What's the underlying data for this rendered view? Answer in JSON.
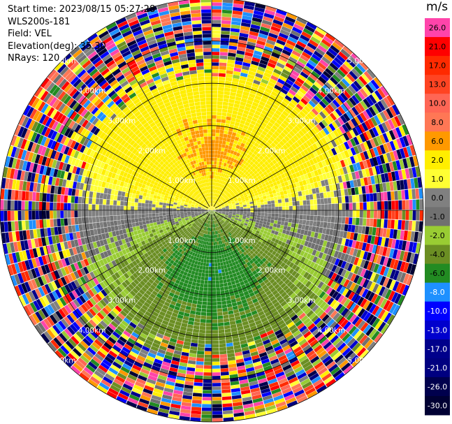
{
  "header": {
    "start_time": "Start time: 2023/08/15 05:27:28",
    "instrument": "WLS200s-181",
    "field": "Field: VEL",
    "elevation": "Elevation(deg): 35.30",
    "nrays": "NRays: 120"
  },
  "chart_data": {
    "type": "heatmap",
    "subtype": "polar-ppi",
    "field": "VEL",
    "units": "m/s",
    "nrays": 120,
    "range_rings_km": [
      1.0,
      2.0,
      3.0,
      4.0,
      5.0
    ],
    "ring_labels": [
      "1.00km",
      "2.00km",
      "3.00km",
      "4.00km",
      "5.00km"
    ],
    "colorbar": {
      "ticks": [
        26.0,
        21.0,
        17.0,
        13.0,
        10.0,
        8.0,
        6.0,
        2.0,
        1.0,
        0.0,
        -1.0,
        -2.0,
        -4.0,
        -6.0,
        -8.0,
        -10.0,
        -13.0,
        -17.0,
        -21.0,
        -26.0,
        -30.0
      ],
      "tick_labels": [
        "26.0",
        "21.0",
        "17.0",
        "13.0",
        "10.0",
        "8.0",
        "6.0",
        "2.0",
        "1.0",
        "0.0",
        "-1.0",
        "-2.0",
        "-4.0",
        "-6.0",
        "-8.0",
        "-10.0",
        "-13.0",
        "-17.0",
        "-21.0",
        "-26.0",
        "-30.0"
      ],
      "colors": [
        "#ff44aa",
        "#ff0000",
        "#ff2a00",
        "#ff4422",
        "#ff6655",
        "#ff7755",
        "#ff9900",
        "#ffee00",
        "#ffff33",
        "#808080",
        "#707070",
        "#99cc33",
        "#6b8e23",
        "#228b22",
        "#1e90ff",
        "#0000ff",
        "#0000cd",
        "#00008b",
        "#000080",
        "#00004d",
        "#000033"
      ]
    },
    "structure": {
      "clean_range_km": 3.6,
      "noise_start_km": 3.2,
      "outer_range_km": 5.0,
      "pattern": "positive velocities (yellow/orange) to the north, negative (green) to the south, near-zero (grey) along east-west axis, random noise beyond ~3.5 km"
    }
  }
}
